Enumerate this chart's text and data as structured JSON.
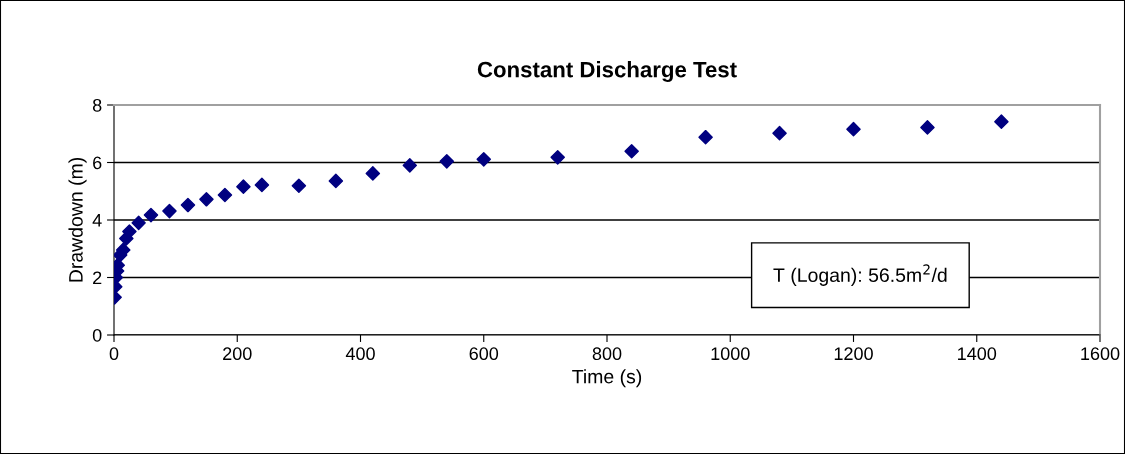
{
  "chart_data": {
    "type": "scatter",
    "title": "Constant Discharge Test",
    "xlabel": "Time (s)",
    "ylabel": "Drawdown (m)",
    "x": [
      1,
      2,
      3,
      5,
      6,
      10,
      15,
      20,
      25,
      40,
      60,
      90,
      120,
      150,
      180,
      210,
      240,
      300,
      360,
      420,
      480,
      540,
      600,
      720,
      840,
      960,
      1080,
      1200,
      1320,
      1440
    ],
    "series": [
      {
        "color": "#000080",
        "values": [
          1.31,
          1.68,
          2.0,
          2.23,
          2.43,
          2.78,
          2.96,
          3.36,
          3.6,
          3.9,
          4.17,
          4.31,
          4.52,
          4.72,
          4.87,
          5.16,
          5.22,
          5.19,
          5.36,
          5.62,
          5.9,
          6.04,
          6.11,
          6.18,
          6.39,
          6.88,
          7.02,
          7.16,
          7.22,
          7.42
        ]
      }
    ],
    "xlim": [
      0,
      1600
    ],
    "xticks": [
      0,
      200,
      400,
      600,
      800,
      1000,
      1200,
      1400,
      1600
    ],
    "ylim": [
      0,
      8
    ],
    "yticks": [
      0,
      2,
      4,
      6,
      8
    ],
    "grid": "y",
    "marker": "diamond",
    "annotations": [
      "T (Logan): 56.5m$^{2}$/d"
    ]
  }
}
